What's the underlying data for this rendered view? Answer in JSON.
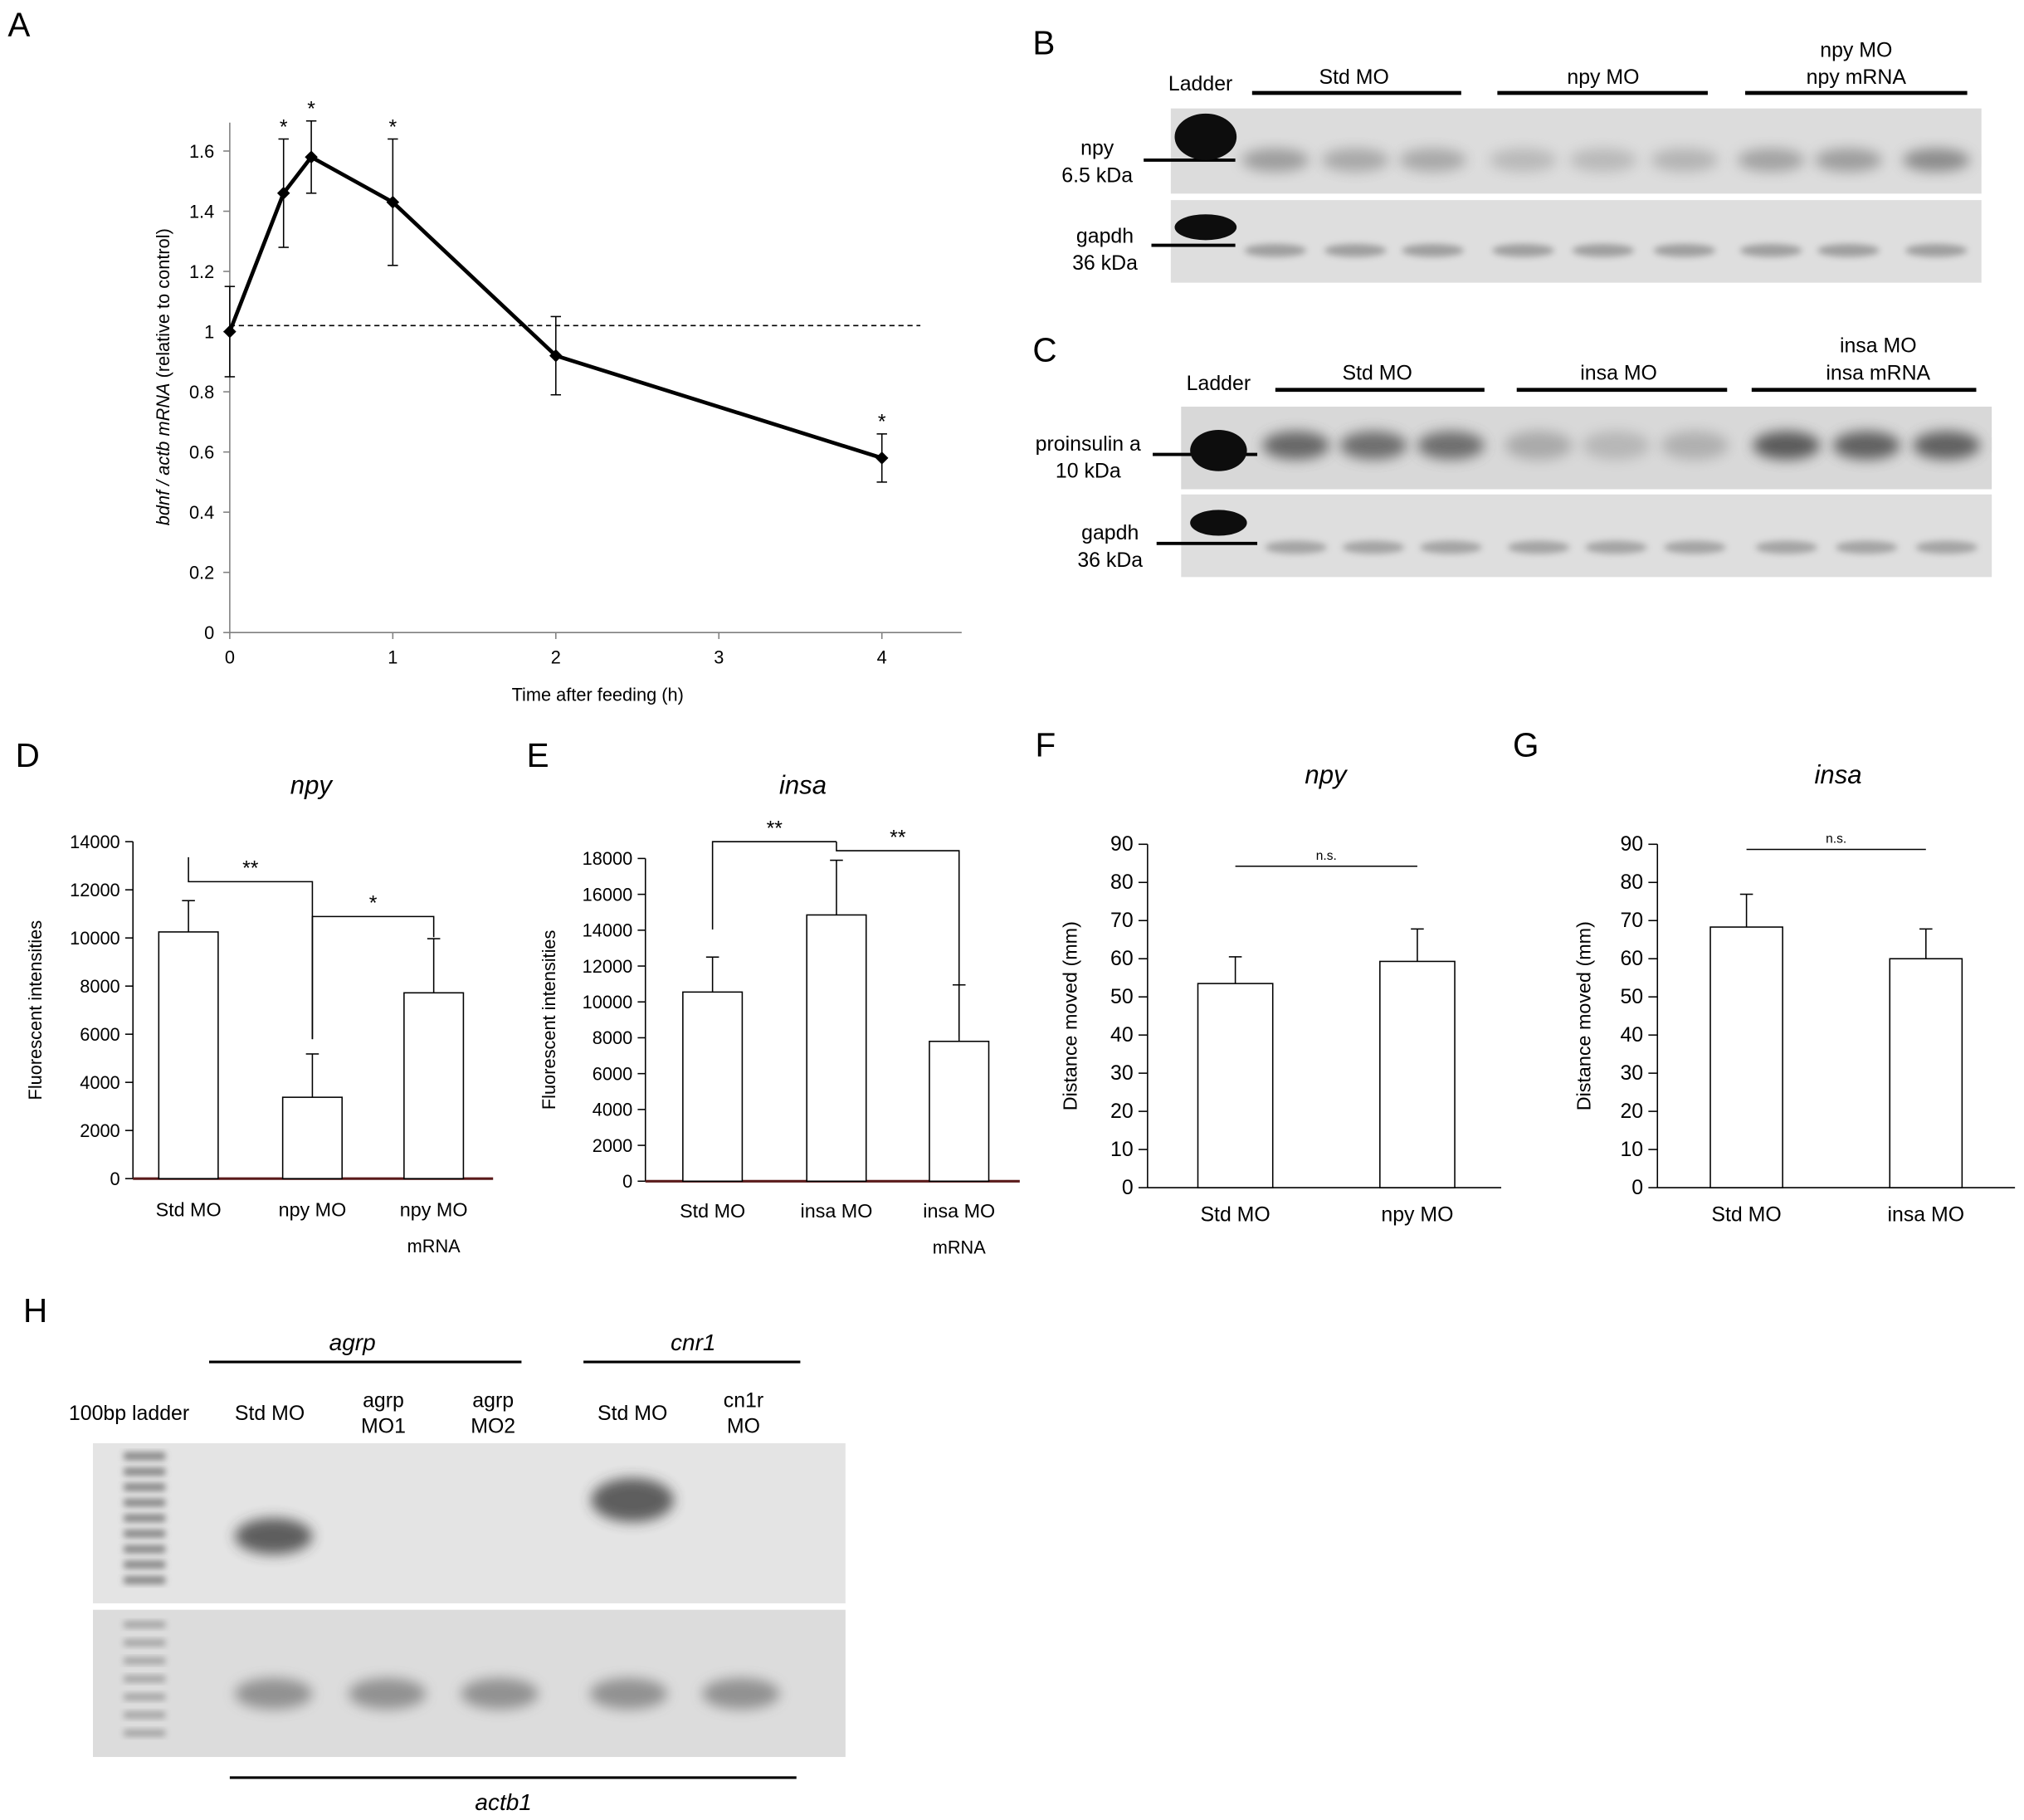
{
  "chart_data": [
    {
      "panel": "A",
      "type": "line",
      "xlabel": "Time after feeding (h)",
      "ylabel_italic_part": "bdnf / actb mRNA",
      "ylabel_rest": " (relative to control)",
      "ylim": [
        0,
        1.6
      ],
      "yticks": [
        "0",
        "0.2",
        "0.4",
        "0.6",
        "0.8",
        "1",
        "1.2",
        "1.4",
        "1.6"
      ],
      "xlim": [
        0,
        4
      ],
      "xticks": [
        "0",
        "1",
        "2",
        "3",
        "4"
      ],
      "reference_line": 1.02,
      "x": [
        0,
        0.33,
        0.5,
        1,
        2,
        4
      ],
      "y": [
        1.0,
        1.46,
        1.58,
        1.43,
        0.92,
        0.58
      ],
      "error": [
        0.15,
        0.18,
        0.12,
        0.21,
        0.13,
        0.08
      ],
      "significance": [
        "",
        "*",
        "*",
        "*",
        "",
        "*"
      ]
    },
    {
      "panel": "D",
      "type": "bar",
      "title": "npy",
      "ylabel": "Fluorescent intensities",
      "ylim": [
        0,
        14000
      ],
      "yticks": [
        "0",
        "2000",
        "4000",
        "6000",
        "8000",
        "10000",
        "12000",
        "14000"
      ],
      "categories": [
        "Std MO",
        "npy MO",
        "npy MO"
      ],
      "category_sub": [
        "",
        "",
        "mRNA"
      ],
      "values": [
        10250,
        3380,
        7720
      ],
      "error": [
        1300,
        1800,
        2250
      ],
      "brackets": [
        {
          "from": 0,
          "to": 1,
          "label": "**"
        },
        {
          "from": 1,
          "to": 2,
          "label": "*"
        }
      ]
    },
    {
      "panel": "E",
      "type": "bar",
      "title": "insa",
      "ylabel": "Fluorescent intensities",
      "ylim": [
        0,
        18000
      ],
      "yticks": [
        "0",
        "2000",
        "4000",
        "6000",
        "8000",
        "10000",
        "12000",
        "14000",
        "16000",
        "18000"
      ],
      "categories": [
        "Std MO",
        "insa MO",
        "insa MO"
      ],
      "category_sub": [
        "",
        "",
        "mRNA"
      ],
      "values": [
        10550,
        14850,
        7800
      ],
      "error": [
        1950,
        3050,
        3150
      ],
      "brackets": [
        {
          "from": 0,
          "to": 1,
          "label": "**"
        },
        {
          "from": 1,
          "to": 2,
          "label": "**"
        }
      ]
    },
    {
      "panel": "F",
      "type": "bar",
      "title": "npy",
      "ylabel": "Distance moved (mm)",
      "ylim": [
        0,
        90
      ],
      "yticks": [
        "0",
        "10",
        "20",
        "30",
        "40",
        "50",
        "60",
        "70",
        "80",
        "90"
      ],
      "categories": [
        "Std MO",
        "npy MO"
      ],
      "values": [
        53.5,
        59.3
      ],
      "error": [
        7,
        8.5
      ],
      "brackets": [
        {
          "from": 0,
          "to": 1,
          "label": "n.s."
        }
      ]
    },
    {
      "panel": "G",
      "type": "bar",
      "title": "insa",
      "ylabel": "Distance moved (mm)",
      "ylim": [
        0,
        90
      ],
      "yticks": [
        "0",
        "10",
        "20",
        "30",
        "40",
        "50",
        "60",
        "70",
        "80",
        "90"
      ],
      "categories": [
        "Std MO",
        "insa MO"
      ],
      "values": [
        68.3,
        60
      ],
      "error": [
        8.6,
        7.8
      ],
      "brackets": [
        {
          "from": 0,
          "to": 1,
          "label": "n.s."
        }
      ]
    }
  ],
  "panel_labels": {
    "a": "A",
    "b": "B",
    "c": "C",
    "d": "D",
    "e": "E",
    "f": "F",
    "g": "G",
    "h": "H"
  },
  "blot_b": {
    "ladder": "Ladder",
    "groups": [
      "Std MO",
      "npy MO",
      "npy MO"
    ],
    "group3_line2": "npy mRNA",
    "top_label": [
      "npy",
      "6.5 kDa"
    ],
    "bottom_label": [
      "gapdh",
      "36 kDa"
    ]
  },
  "blot_c": {
    "ladder": "Ladder",
    "groups": [
      "Std MO",
      "insa MO",
      "insa MO"
    ],
    "group3_line2": "insa mRNA",
    "top_label": [
      "proinsulin a",
      "10 kDa"
    ],
    "bottom_label": [
      "gapdh",
      "36 kDa"
    ]
  },
  "gel_h": {
    "group_agrp": "agrp",
    "group_cnr1": "cnr1",
    "ladder": "100bp ladder",
    "lanes": [
      [
        "Std MO"
      ],
      [
        "agrp",
        "MO1"
      ],
      [
        "agrp",
        "MO2"
      ],
      [
        "Std MO"
      ],
      [
        "cn1r",
        "MO"
      ]
    ],
    "bottom": "actb1"
  },
  "colors": {
    "band": "#3a3a3a",
    "blot_bg": "#dcdcdc",
    "gel_bg": "#e4e4e4",
    "axis": "#7f7f7f"
  }
}
